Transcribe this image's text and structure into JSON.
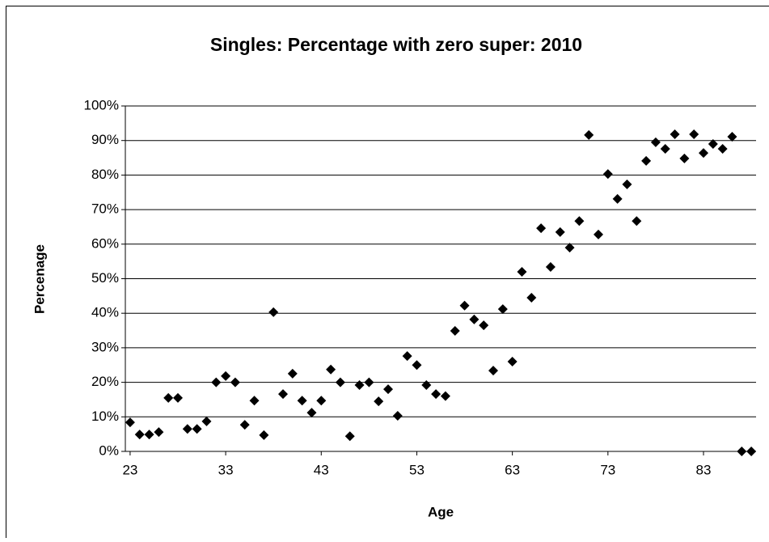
{
  "chart_data": {
    "type": "scatter",
    "title": "Singles: Percentage with zero super: 2010",
    "x_label": "Age",
    "y_label": "Percenage",
    "color": "#000000",
    "grid": true,
    "xlim": [
      22.5,
      88.5
    ],
    "ylim": [
      0,
      100
    ],
    "xticks": [
      23,
      33,
      43,
      53,
      63,
      73,
      83
    ],
    "yticks": [
      {
        "value": 0,
        "label": "0%"
      },
      {
        "value": 10,
        "label": "10%"
      },
      {
        "value": 20,
        "label": "20%"
      },
      {
        "value": 30,
        "label": "30%"
      },
      {
        "value": 40,
        "label": "40%"
      },
      {
        "value": 50,
        "label": "50%"
      },
      {
        "value": 60,
        "label": "60%"
      },
      {
        "value": 70,
        "label": "70%"
      },
      {
        "value": 80,
        "label": "80%"
      },
      {
        "value": 90,
        "label": "90%"
      },
      {
        "value": 100,
        "label": "100%"
      }
    ],
    "x": [
      23,
      24,
      25,
      26,
      27,
      28,
      29,
      30,
      31,
      32,
      33,
      34,
      35,
      36,
      37,
      38,
      39,
      40,
      41,
      42,
      43,
      44,
      45,
      46,
      47,
      48,
      49,
      50,
      51,
      52,
      53,
      54,
      55,
      56,
      57,
      58,
      59,
      60,
      61,
      62,
      63,
      64,
      65,
      66,
      67,
      68,
      69,
      70,
      71,
      72,
      73,
      74,
      75,
      76,
      77,
      78,
      79,
      80,
      81,
      82,
      83,
      84,
      85,
      86,
      87,
      88
    ],
    "values": [
      8.4,
      4.9,
      4.9,
      5.6,
      15.5,
      15.5,
      6.5,
      6.5,
      8.7,
      20,
      21.8,
      20,
      7.7,
      14.7,
      4.7,
      40.3,
      16.6,
      22.5,
      14.7,
      11.2,
      14.7,
      23.7,
      20,
      4.4,
      19.2,
      20,
      14.5,
      18,
      10.3,
      27.6,
      25,
      19.2,
      16.6,
      16,
      34.9,
      42.2,
      38.2,
      36.5,
      23.4,
      41.2,
      26,
      52,
      44.5,
      64.6,
      53.4,
      63.5,
      59,
      66.7,
      91.6,
      62.8,
      80.3,
      73.1,
      77.3,
      66.7,
      84.1,
      89.5,
      87.6,
      91.8,
      84.8,
      91.8,
      86.4,
      89,
      87.6,
      91.1,
      0,
      0
    ]
  }
}
